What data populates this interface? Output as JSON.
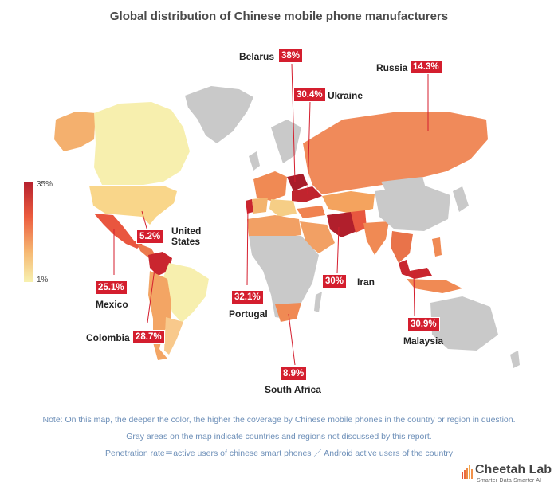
{
  "title": "Global distribution of Chinese mobile phone manufacturers",
  "legend": {
    "max_label": "35%",
    "min_label": "1%",
    "color_high": "#b5202e",
    "color_low": "#f7f1b0",
    "gray_color": "#c9c9c9"
  },
  "callouts": [
    {
      "country": "Belarus",
      "value": "38%"
    },
    {
      "country": "Russia",
      "value": "14.3%"
    },
    {
      "country": "Ukraine",
      "value": "30.4%"
    },
    {
      "country": "United States",
      "value": "5.2%"
    },
    {
      "country": "Mexico",
      "value": "25.1%"
    },
    {
      "country": "Colombia",
      "value": "28.7%"
    },
    {
      "country": "Portugal",
      "value": "32.1%"
    },
    {
      "country": "Iran",
      "value": "30%"
    },
    {
      "country": "Malaysia",
      "value": "30.9%"
    },
    {
      "country": "South Africa",
      "value": "8.9%"
    }
  ],
  "notes": [
    "Note: On this map, the deeper the color, the higher the coverage by Chinese mobile phones in the country or region in question.",
    "Gray areas on the map indicate countries and regions not discussed by this report.",
    "Penetration rate＝active users of chinese smart phones ／ Android active users of the country"
  ],
  "brand": {
    "name": "Cheetah Lab",
    "tagline": "Smarter Data Smarter AI",
    "icon": "cheetah-bars-logo"
  }
}
